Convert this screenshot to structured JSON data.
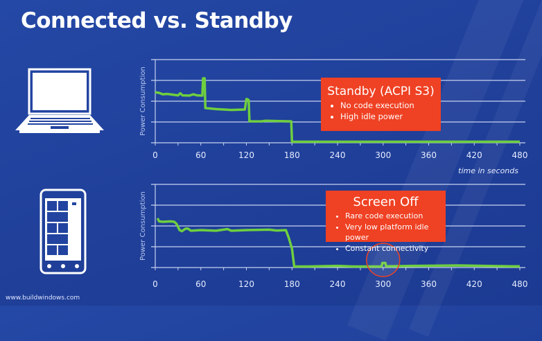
{
  "slide": {
    "title": "Connected vs. Standby",
    "footer": "www.buildwindows.com"
  },
  "colors": {
    "background": "#2244a0",
    "line": "#6fcf3f",
    "callout": "#ef4123",
    "highlight_circle": "#ef4123",
    "grid": "#c8d2f0"
  },
  "icons": {
    "top": "laptop-icon",
    "bottom": "phone-icon"
  },
  "callouts": [
    {
      "title": "Standby (ACPI S3)",
      "bullets": [
        "No code execution",
        "High idle power"
      ]
    },
    {
      "title": "Screen Off",
      "bullets": [
        "Rare code execution",
        "Very low platform idle power",
        "Constant connectivity"
      ]
    }
  ],
  "chart_data": [
    {
      "type": "line",
      "title": "",
      "xlabel": "time in seconds",
      "ylabel": "Power Consumption",
      "xlim": [
        0,
        480
      ],
      "ylim": [
        0,
        4
      ],
      "grid": true,
      "x_ticks": [
        "0",
        "60",
        "120",
        "180",
        "240",
        "300",
        "360",
        "420",
        "480"
      ],
      "series": [
        {
          "name": "Standby (ACPI S3)",
          "x": [
            0,
            5,
            10,
            15,
            20,
            30,
            33,
            36,
            45,
            50,
            55,
            62,
            63,
            65,
            66,
            80,
            100,
            118,
            120,
            121,
            123,
            124,
            140,
            145,
            179,
            180,
            181,
            480
          ],
          "y": [
            2.43,
            2.4,
            2.33,
            2.35,
            2.33,
            2.28,
            2.38,
            2.28,
            2.27,
            2.33,
            2.28,
            2.27,
            3.1,
            3.1,
            1.67,
            1.62,
            1.58,
            1.6,
            2.1,
            2.1,
            2.05,
            1.03,
            1.03,
            1.06,
            1.03,
            0.05,
            0.05,
            0.05
          ]
        }
      ]
    },
    {
      "type": "line",
      "title": "",
      "xlabel": "",
      "ylabel": "Power Consumption",
      "xlim": [
        0,
        480
      ],
      "ylim": [
        0,
        4
      ],
      "grid": true,
      "x_ticks": [
        "0",
        "60",
        "120",
        "180",
        "240",
        "300",
        "360",
        "420",
        "480"
      ],
      "series": [
        {
          "name": "Screen Off",
          "x": [
            3,
            5,
            10,
            20,
            25,
            28,
            32,
            35,
            40,
            43,
            47,
            60,
            80,
            95,
            100,
            120,
            150,
            160,
            172,
            176,
            180,
            183,
            200,
            240,
            260,
            298,
            299,
            303,
            304,
            340,
            400,
            470,
            480
          ],
          "y": [
            2.37,
            2.22,
            2.2,
            2.22,
            2.2,
            2.1,
            1.8,
            1.75,
            1.87,
            1.87,
            1.77,
            1.8,
            1.77,
            1.85,
            1.77,
            1.8,
            1.82,
            1.78,
            1.8,
            1.4,
            0.9,
            0.05,
            0.05,
            0.08,
            0.05,
            0.05,
            0.22,
            0.22,
            0.06,
            0.08,
            0.1,
            0.06,
            0.06
          ]
        }
      ],
      "annotations": [
        {
          "type": "circle",
          "x": 300,
          "y": 0.2,
          "label": ""
        }
      ]
    }
  ]
}
